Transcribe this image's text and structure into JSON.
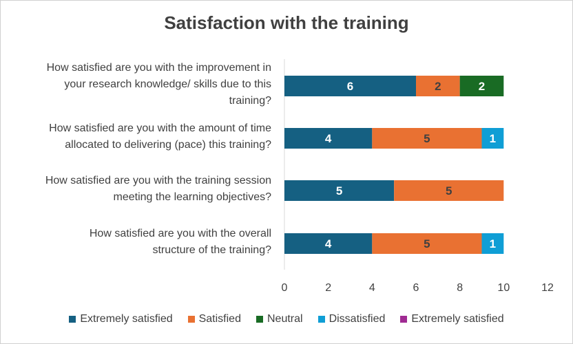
{
  "chart_data": {
    "type": "bar",
    "orientation": "horizontal",
    "stacked": true,
    "title": "Satisfaction with the training",
    "xlabel": "",
    "ylabel": "",
    "xlim": [
      0,
      12
    ],
    "xticks": [
      "0",
      "2",
      "4",
      "6",
      "8",
      "10",
      "12"
    ],
    "grid": false,
    "legend_position": "bottom",
    "categories": [
      [
        "How satisfied are you with the improvement in",
        "your research knowledge/ skills due to this",
        "training?"
      ],
      [
        "How satisfied are you with the amount of time",
        "allocated to delivering (pace) this training?"
      ],
      [
        "How satisfied are you with the training session",
        "meeting the learning objectives?"
      ],
      [
        "How satisfied are you with the overall",
        "structure of the training?"
      ]
    ],
    "series": [
      {
        "name": "Extremely satisfied",
        "color": "#156082",
        "values": [
          6,
          4,
          5,
          4
        ]
      },
      {
        "name": "Satisfied",
        "color": "#E97132",
        "values": [
          2,
          5,
          5,
          5
        ]
      },
      {
        "name": "Neutral",
        "color": "#196B24",
        "values": [
          2,
          0,
          0,
          0
        ]
      },
      {
        "name": "Dissatisfied",
        "color": "#0F9ED5",
        "values": [
          0,
          1,
          0,
          1
        ]
      },
      {
        "name": "Extremely satisfied",
        "color": "#A02B93",
        "values": [
          0,
          0,
          0,
          0
        ]
      }
    ]
  }
}
